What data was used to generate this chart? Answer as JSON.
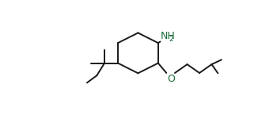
{
  "line_color": "#1a1a1a",
  "nh2_color": "#1a6b3a",
  "o_color": "#1a6b3a",
  "bg_color": "#ffffff",
  "linewidth": 1.4,
  "fontsize_nh2": 9,
  "fontsize_o": 9,
  "fig_width": 3.26,
  "fig_height": 1.5,
  "dpi": 100
}
